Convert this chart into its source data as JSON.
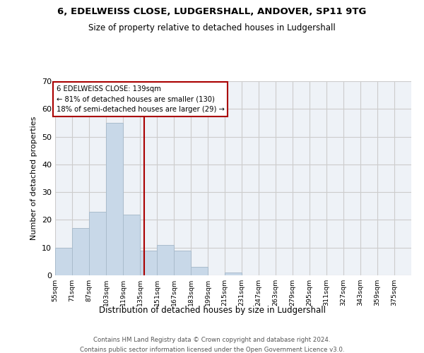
{
  "title1": "6, EDELWEISS CLOSE, LUDGERSHALL, ANDOVER, SP11 9TG",
  "title2": "Size of property relative to detached houses in Ludgershall",
  "xlabel": "Distribution of detached houses by size in Ludgershall",
  "ylabel": "Number of detached properties",
  "bin_labels": [
    "55sqm",
    "71sqm",
    "87sqm",
    "103sqm",
    "119sqm",
    "135sqm",
    "151sqm",
    "167sqm",
    "183sqm",
    "199sqm",
    "215sqm",
    "231sqm",
    "247sqm",
    "263sqm",
    "279sqm",
    "295sqm",
    "311sqm",
    "327sqm",
    "343sqm",
    "359sqm",
    "375sqm"
  ],
  "bin_edges": [
    55,
    71,
    87,
    103,
    119,
    135,
    151,
    167,
    183,
    199,
    215,
    231,
    247,
    263,
    279,
    295,
    311,
    327,
    343,
    359,
    375
  ],
  "bar_heights": [
    10,
    17,
    23,
    55,
    22,
    9,
    11,
    9,
    3,
    0,
    1,
    0,
    0,
    0,
    0,
    0,
    0,
    0,
    0,
    0
  ],
  "bar_color": "#c8d8e8",
  "bar_edgecolor": "#aabccc",
  "grid_color": "#cccccc",
  "bg_color": "#eef2f7",
  "red_line_x": 139,
  "annotation_text": "6 EDELWEISS CLOSE: 139sqm\n← 81% of detached houses are smaller (130)\n18% of semi-detached houses are larger (29) →",
  "annotation_box_color": "#aa0000",
  "ylim": [
    0,
    70
  ],
  "yticks": [
    0,
    10,
    20,
    30,
    40,
    50,
    60,
    70
  ],
  "footer1": "Contains HM Land Registry data © Crown copyright and database right 2024.",
  "footer2": "Contains public sector information licensed under the Open Government Licence v3.0."
}
